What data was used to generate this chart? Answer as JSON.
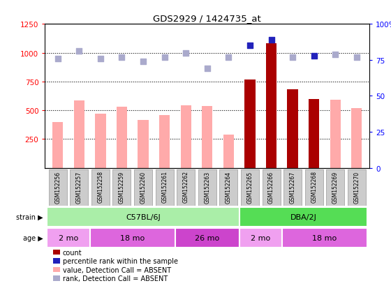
{
  "title": "GDS2929 / 1424735_at",
  "samples": [
    "GSM152256",
    "GSM152257",
    "GSM152258",
    "GSM152259",
    "GSM152260",
    "GSM152261",
    "GSM152262",
    "GSM152263",
    "GSM152264",
    "GSM152265",
    "GSM152266",
    "GSM152267",
    "GSM152268",
    "GSM152269",
    "GSM152270"
  ],
  "count_values": [
    395,
    585,
    470,
    530,
    415,
    460,
    545,
    540,
    290,
    770,
    1080,
    680,
    600,
    590,
    520
  ],
  "count_absent": [
    true,
    true,
    true,
    true,
    true,
    true,
    true,
    true,
    true,
    false,
    false,
    false,
    false,
    true,
    true
  ],
  "rank_values": [
    76,
    81,
    76,
    77,
    74,
    77,
    80,
    69,
    77,
    85,
    89,
    77,
    78,
    79,
    77
  ],
  "rank_absent": [
    true,
    true,
    true,
    true,
    true,
    true,
    true,
    true,
    true,
    false,
    false,
    true,
    false,
    true,
    true
  ],
  "ylim_left": [
    0,
    1250
  ],
  "ylim_right": [
    0,
    100
  ],
  "yticks_left": [
    250,
    500,
    750,
    1000,
    1250
  ],
  "yticks_right": [
    0,
    25,
    50,
    75,
    100
  ],
  "bar_color_present": "#aa0000",
  "bar_color_absent": "#ffaaaa",
  "dot_color_present": "#2222bb",
  "dot_color_absent": "#aaaacc",
  "grid_values": [
    250,
    500,
    750,
    1000
  ],
  "strain_groups": [
    {
      "label": "C57BL/6J",
      "start": 0,
      "end": 8,
      "color": "#aaeea8"
    },
    {
      "label": "DBA/2J",
      "start": 9,
      "end": 14,
      "color": "#55dd55"
    }
  ],
  "age_groups": [
    {
      "label": "2 mo",
      "start": 0,
      "end": 1,
      "color": "#f0a0f0"
    },
    {
      "label": "18 mo",
      "start": 2,
      "end": 5,
      "color": "#dd66dd"
    },
    {
      "label": "26 mo",
      "start": 6,
      "end": 8,
      "color": "#cc44cc"
    },
    {
      "label": "2 mo",
      "start": 9,
      "end": 10,
      "color": "#f0a0f0"
    },
    {
      "label": "18 mo",
      "start": 11,
      "end": 14,
      "color": "#dd66dd"
    }
  ],
  "bar_width": 0.5,
  "dot_size": 30,
  "sample_box_color": "#cccccc",
  "sample_box_edge": "#999999"
}
